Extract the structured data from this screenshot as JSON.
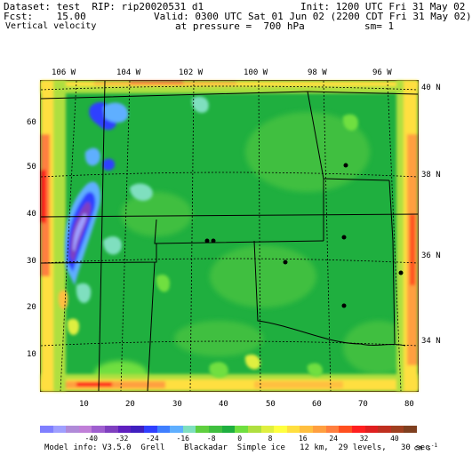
{
  "header": {
    "line1_left": "Dataset: test  RIP: rip20020531 d1",
    "line1_right": "Init: 1200 UTC Fri 31 May 02",
    "line2_left": "Fcst:    15.00",
    "line2_right": "Valid: 0300 UTC Sat 01 Jun 02 (2200 CDT Fri 31 May 02)",
    "line3_left": "Vertical velocity",
    "line3_right": "at pressure =  700 hPa",
    "line3_sm": "sm= 1"
  },
  "longitude_labels": [
    "106 W",
    "104 W",
    "102 W",
    "100 W",
    "98 W",
    "96 W"
  ],
  "latitude_labels": [
    "40 N",
    "38 N",
    "36 N",
    "34 N"
  ],
  "y_axis_ticks": [
    "60",
    "50",
    "40",
    "30",
    "20",
    "10"
  ],
  "x_axis_ticks": [
    "10",
    "20",
    "30",
    "40",
    "50",
    "60",
    "70",
    "80"
  ],
  "legend": {
    "values": [
      "-40",
      "-32",
      "-24",
      "-16",
      "-8",
      "0",
      "8",
      "16",
      "24",
      "32",
      "40"
    ],
    "units": "cm s",
    "units_exp": "-1",
    "colors": [
      "#7f7fff",
      "#9f9fff",
      "#b08ad8",
      "#c07fd8",
      "#9f5fcf",
      "#7f3fbf",
      "#5f1fbf",
      "#3f1fbf",
      "#2f3fff",
      "#3f7fff",
      "#5fafff",
      "#7fdfbf",
      "#5fcf3f",
      "#3fbf3f",
      "#1faf3f",
      "#6fdf3f",
      "#afdf3f",
      "#dfef3f",
      "#ffff3f",
      "#ffdf3f",
      "#ffbf3f",
      "#ff9f3f",
      "#ff7f3f",
      "#ff4f1f",
      "#ff1f1f",
      "#df1f1f",
      "#bf2f1f",
      "#9f3f1f",
      "#7f3f1f"
    ]
  },
  "model_info": "Model info: V3.5.0  Grell    Blackadar  Simple ice   12 km,  29 levels,   30 sec"
}
